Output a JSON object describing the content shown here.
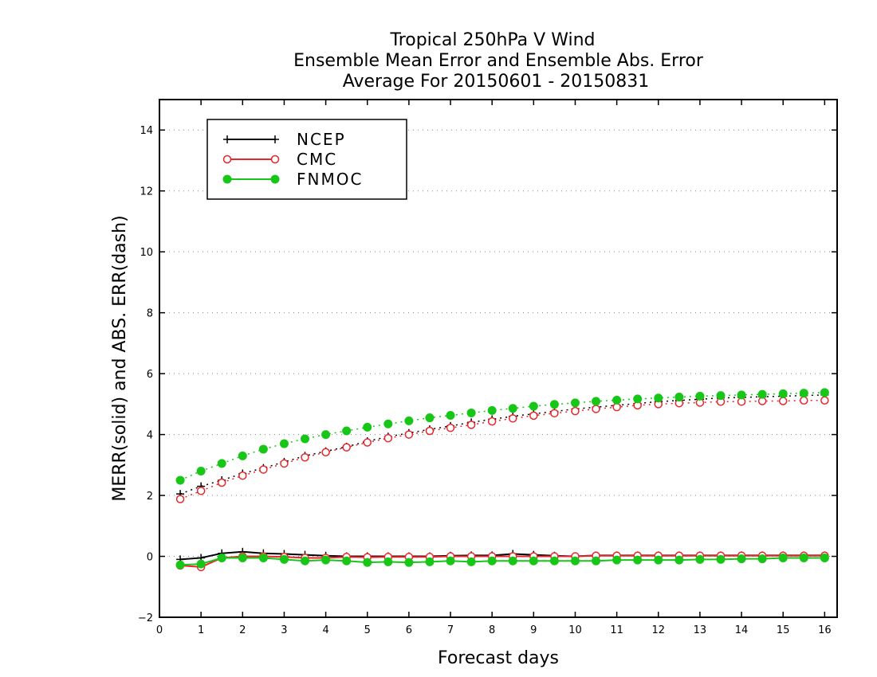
{
  "chart_data": {
    "type": "line",
    "title_lines": [
      "Tropical 250hPa V Wind",
      "Ensemble Mean Error and Ensemble Abs. Error",
      "Average For 20150601 - 20150831"
    ],
    "xlabel": "Forecast days",
    "ylabel": "MERR(solid) and ABS. ERR(dash)",
    "xlim": [
      0,
      16.3
    ],
    "ylim": [
      -2,
      15
    ],
    "xticks": [
      0,
      1,
      2,
      3,
      4,
      5,
      6,
      7,
      8,
      9,
      10,
      11,
      12,
      13,
      14,
      15,
      16
    ],
    "yticks": [
      -2,
      0,
      2,
      4,
      6,
      8,
      10,
      12,
      14
    ],
    "grid": "horizontal dotted",
    "legend_position": "top-left",
    "x": [
      0.5,
      1,
      1.5,
      2,
      2.5,
      3,
      3.5,
      4,
      4.5,
      5,
      5.5,
      6,
      6.5,
      7,
      7.5,
      8,
      8.5,
      9,
      9.5,
      10,
      10.5,
      11,
      11.5,
      12,
      12.5,
      13,
      13.5,
      14,
      14.5,
      15,
      15.5,
      16
    ],
    "series": [
      {
        "name": "NCEP",
        "color": "#000000",
        "marker": "plus",
        "merr": [
          -0.1,
          -0.05,
          0.1,
          0.15,
          0.1,
          0.08,
          0.05,
          0.02,
          0.0,
          0.0,
          0.0,
          0.0,
          0.0,
          0.02,
          0.03,
          0.03,
          0.08,
          0.05,
          0.02,
          0.0,
          0.03,
          0.03,
          0.03,
          0.03,
          0.03,
          0.03,
          0.03,
          0.03,
          0.03,
          0.03,
          0.03,
          0.03
        ],
        "abs_err": [
          2.05,
          2.3,
          2.5,
          2.72,
          2.9,
          3.1,
          3.3,
          3.45,
          3.6,
          3.78,
          3.93,
          4.05,
          4.17,
          4.28,
          4.4,
          4.5,
          4.6,
          4.68,
          4.76,
          4.84,
          4.9,
          4.96,
          5.02,
          5.08,
          5.12,
          5.16,
          5.2,
          5.22,
          5.24,
          5.26,
          5.28,
          5.3
        ]
      },
      {
        "name": "CMC",
        "color": "#e8262c",
        "marker": "open-circle",
        "merr": [
          -0.3,
          -0.35,
          -0.05,
          0.0,
          0.0,
          -0.02,
          -0.05,
          -0.05,
          -0.02,
          -0.03,
          -0.02,
          -0.02,
          -0.02,
          0.0,
          0.0,
          0.0,
          0.0,
          0.0,
          0.0,
          0.0,
          0.02,
          0.02,
          0.02,
          0.02,
          0.02,
          0.02,
          0.02,
          0.02,
          0.02,
          0.02,
          0.02,
          0.02
        ],
        "abs_err": [
          1.88,
          2.15,
          2.42,
          2.65,
          2.85,
          3.05,
          3.25,
          3.42,
          3.58,
          3.74,
          3.88,
          4.0,
          4.12,
          4.22,
          4.32,
          4.43,
          4.53,
          4.62,
          4.7,
          4.77,
          4.84,
          4.9,
          4.96,
          5.0,
          5.03,
          5.05,
          5.08,
          5.08,
          5.1,
          5.1,
          5.12,
          5.12
        ]
      },
      {
        "name": "FNMOC",
        "color": "#17c617",
        "marker": "filled-circle",
        "merr": [
          -0.28,
          -0.25,
          -0.05,
          -0.05,
          -0.05,
          -0.1,
          -0.15,
          -0.12,
          -0.15,
          -0.2,
          -0.18,
          -0.2,
          -0.18,
          -0.15,
          -0.18,
          -0.15,
          -0.15,
          -0.15,
          -0.15,
          -0.15,
          -0.15,
          -0.12,
          -0.12,
          -0.12,
          -0.12,
          -0.1,
          -0.1,
          -0.08,
          -0.08,
          -0.05,
          -0.05,
          -0.05
        ],
        "abs_err": [
          2.5,
          2.8,
          3.05,
          3.3,
          3.52,
          3.7,
          3.86,
          4.0,
          4.12,
          4.24,
          4.35,
          4.45,
          4.55,
          4.63,
          4.71,
          4.79,
          4.86,
          4.93,
          4.99,
          5.04,
          5.09,
          5.13,
          5.17,
          5.2,
          5.23,
          5.26,
          5.28,
          5.3,
          5.32,
          5.34,
          5.36,
          5.38
        ]
      }
    ]
  }
}
